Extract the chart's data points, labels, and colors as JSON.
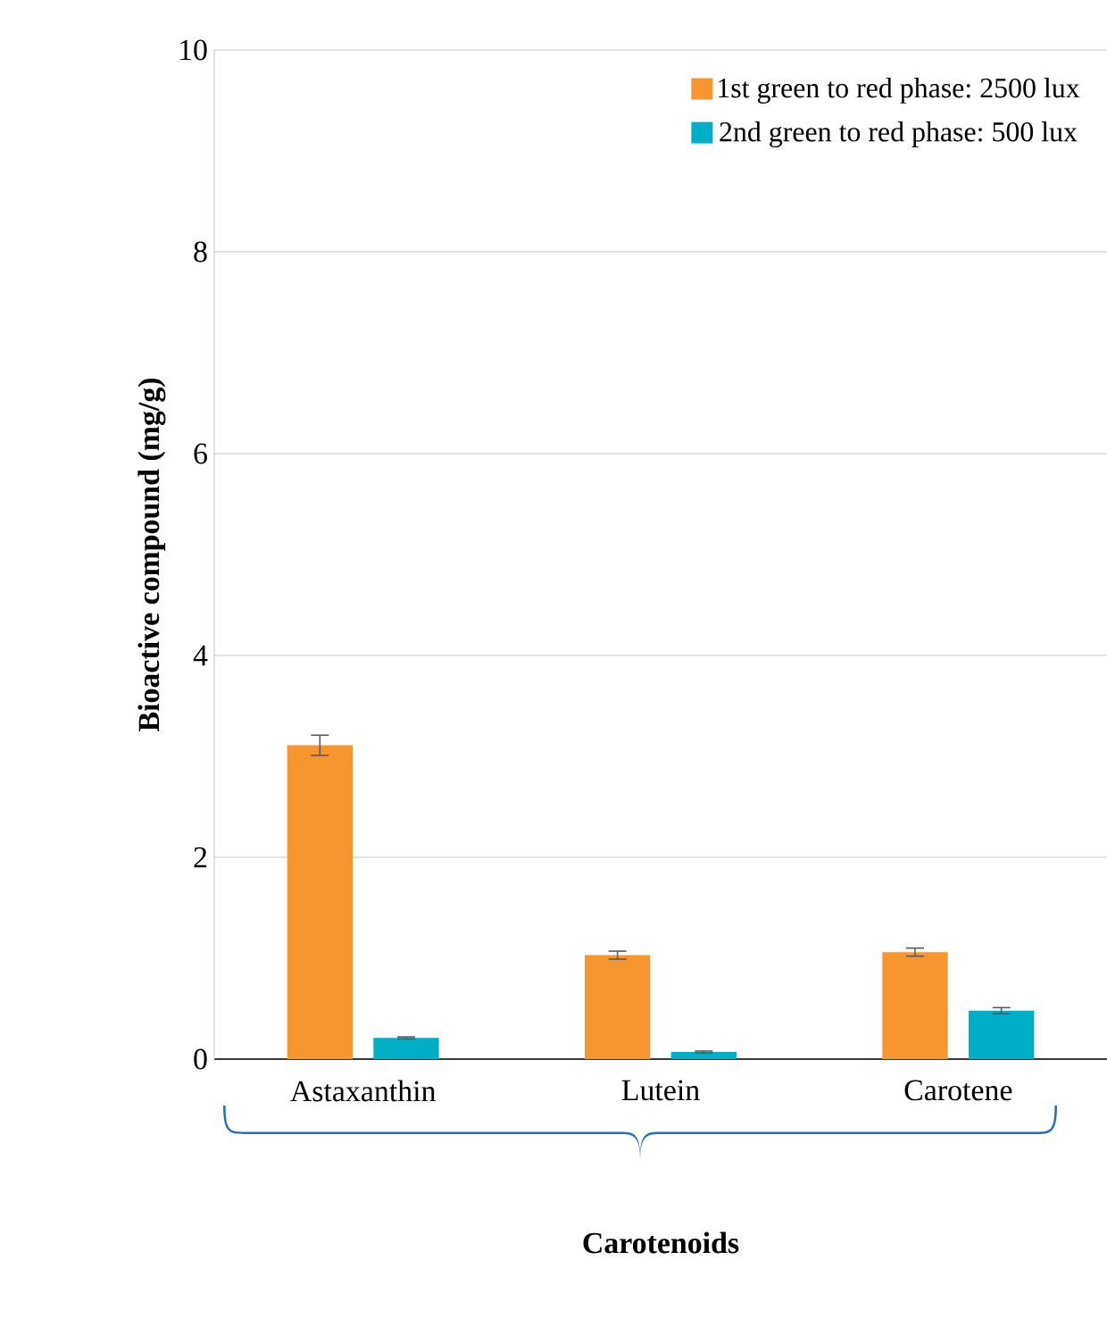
{
  "chart_data": {
    "type": "bar",
    "xlabel": "Carotenoids",
    "ylabel": "Bioactive compound (mg/g)",
    "categories": [
      "Astaxanthin",
      "Lutein",
      "Carotene"
    ],
    "series": [
      {
        "name": "1st green to red phase: 2500 lux",
        "color": "#f7952f",
        "values": [
          3.11,
          1.03,
          1.06
        ],
        "errors": [
          0.1,
          0.04,
          0.04
        ]
      },
      {
        "name": "2nd green to red phase: 500 lux",
        "color": "#00aec7",
        "values": [
          0.21,
          0.07,
          0.48
        ],
        "errors": [
          0.01,
          0.01,
          0.03
        ]
      }
    ],
    "ylim": [
      0,
      10
    ],
    "yticks": [
      0,
      2,
      4,
      6,
      8,
      10
    ],
    "grid": "y",
    "legend": "top right"
  }
}
